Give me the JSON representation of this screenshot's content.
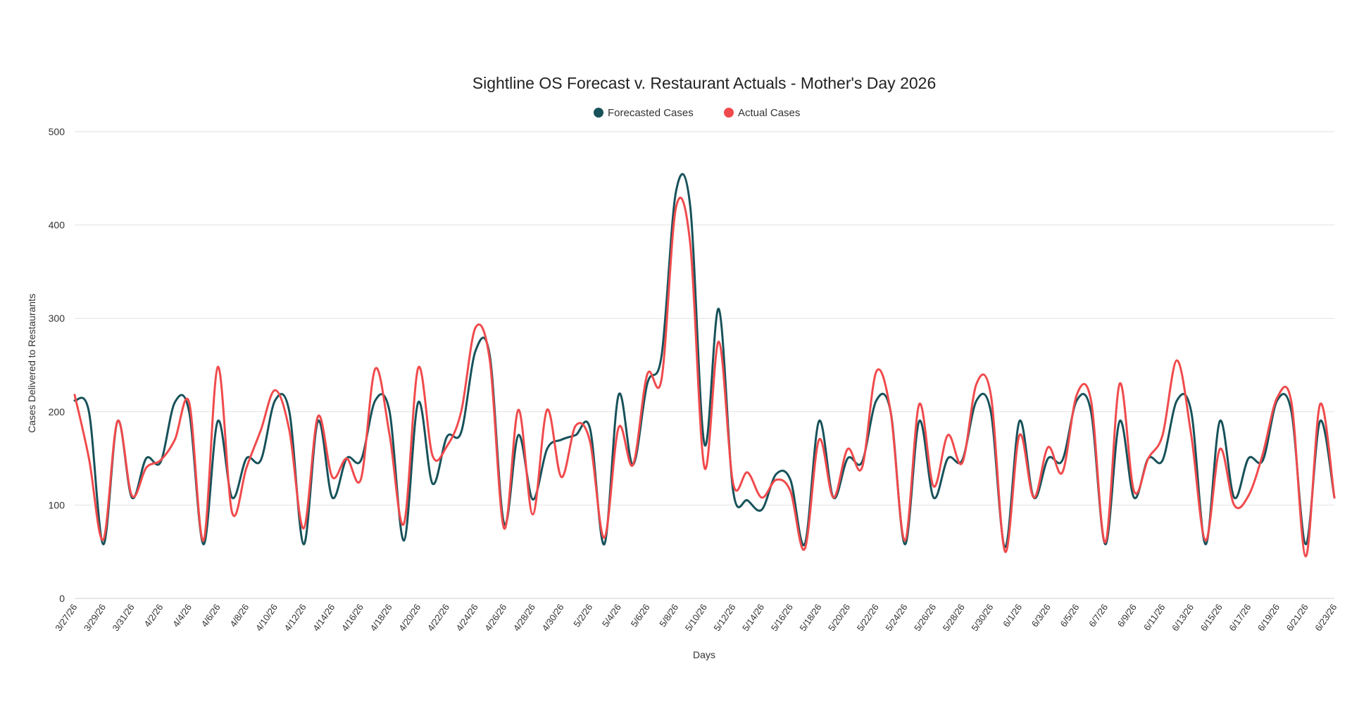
{
  "chart_data": {
    "type": "line",
    "title": "Sightline OS Forecast v. Restaurant Actuals - Mother's Day 2026",
    "xlabel": "Days",
    "ylabel": "Cases Delivered to Restaurants",
    "ylim": [
      0,
      500
    ],
    "yticks": [
      0,
      100,
      200,
      300,
      400,
      500
    ],
    "grid": true,
    "legend_position": "top-center",
    "smooth": true,
    "x": [
      "3/27/26",
      "3/28/26",
      "3/29/26",
      "3/30/26",
      "3/31/26",
      "4/1/26",
      "4/2/26",
      "4/3/26",
      "4/4/26",
      "4/5/26",
      "4/6/26",
      "4/7/26",
      "4/8/26",
      "4/9/26",
      "4/10/26",
      "4/11/26",
      "4/12/26",
      "4/13/26",
      "4/14/26",
      "4/15/26",
      "4/16/26",
      "4/17/26",
      "4/18/26",
      "4/19/26",
      "4/20/26",
      "4/21/26",
      "4/22/26",
      "4/23/26",
      "4/24/26",
      "4/25/26",
      "4/26/26",
      "4/27/26",
      "4/28/26",
      "4/29/26",
      "4/30/26",
      "5/1/26",
      "5/2/26",
      "5/3/26",
      "5/4/26",
      "5/5/26",
      "5/6/26",
      "5/7/26",
      "5/8/26",
      "5/9/26",
      "5/10/26",
      "5/11/26",
      "5/12/26",
      "5/13/26",
      "5/14/26",
      "5/15/26",
      "5/16/26",
      "5/17/26",
      "5/18/26",
      "5/19/26",
      "5/20/26",
      "5/21/26",
      "5/22/26",
      "5/23/26",
      "5/24/26",
      "5/25/26",
      "5/26/26",
      "5/27/26",
      "5/28/26",
      "5/29/26",
      "5/30/26",
      "5/31/26",
      "6/1/26",
      "6/2/26",
      "6/3/26",
      "6/4/26",
      "6/5/26",
      "6/6/26",
      "6/7/26",
      "6/8/26",
      "6/9/26",
      "6/10/26",
      "6/11/26",
      "6/12/26",
      "6/13/26",
      "6/14/26",
      "6/15/26",
      "6/16/26",
      "6/17/26",
      "6/18/26",
      "6/19/26",
      "6/20/26",
      "6/21/26",
      "6/22/26",
      "6/23/26"
    ],
    "x_tick_labels": [
      "3/27/26",
      "3/29/26",
      "3/31/26",
      "4/2/26",
      "4/4/26",
      "4/6/26",
      "4/8/26",
      "4/10/26",
      "4/12/26",
      "4/14/26",
      "4/16/26",
      "4/18/26",
      "4/20/26",
      "4/22/26",
      "4/24/26",
      "4/26/26",
      "4/28/26",
      "4/30/26",
      "5/2/26",
      "5/4/26",
      "5/6/26",
      "5/8/26",
      "5/10/26",
      "5/12/26",
      "5/14/26",
      "5/16/26",
      "5/18/26",
      "5/20/26",
      "5/22/26",
      "5/24/26",
      "5/26/26",
      "5/28/26",
      "5/30/26",
      "6/1/26",
      "6/3/26",
      "6/5/26",
      "6/7/26",
      "6/9/26",
      "6/11/26",
      "6/13/26",
      "6/15/26",
      "6/17/26",
      "6/19/26",
      "6/21/26",
      "6/23/26"
    ],
    "series": [
      {
        "name": "Forecasted Cases",
        "color": "#17525a",
        "values": [
          212,
          200,
          58,
          190,
          108,
          150,
          146,
          210,
          200,
          58,
          190,
          108,
          150,
          148,
          212,
          200,
          58,
          190,
          108,
          150,
          148,
          212,
          200,
          62,
          210,
          123,
          173,
          178,
          265,
          260,
          80,
          175,
          106,
          160,
          170,
          175,
          182,
          58,
          218,
          143,
          230,
          260,
          435,
          420,
          165,
          310,
          115,
          105,
          95,
          133,
          127,
          58,
          190,
          108,
          150,
          146,
          212,
          200,
          58,
          190,
          108,
          150,
          148,
          212,
          200,
          55,
          190,
          108,
          150,
          148,
          212,
          200,
          58,
          190,
          108,
          150,
          148,
          212,
          200,
          58,
          190,
          108,
          150,
          148,
          212,
          200,
          58,
          190,
          108
        ]
      },
      {
        "name": "Actual Cases",
        "color": "#f04a4c",
        "values": [
          218,
          150,
          63,
          190,
          110,
          140,
          148,
          170,
          210,
          62,
          248,
          92,
          140,
          180,
          223,
          180,
          75,
          195,
          130,
          150,
          128,
          246,
          175,
          80,
          247,
          153,
          163,
          200,
          290,
          255,
          75,
          202,
          90,
          202,
          130,
          185,
          168,
          65,
          183,
          143,
          240,
          235,
          418,
          380,
          140,
          275,
          123,
          135,
          108,
          127,
          115,
          53,
          170,
          108,
          160,
          140,
          243,
          200,
          62,
          208,
          120,
          175,
          145,
          230,
          218,
          50,
          175,
          108,
          162,
          135,
          218,
          212,
          60,
          230,
          115,
          150,
          175,
          255,
          175,
          62,
          160,
          100,
          110,
          155,
          215,
          210,
          45,
          208,
          108
        ]
      }
    ]
  }
}
